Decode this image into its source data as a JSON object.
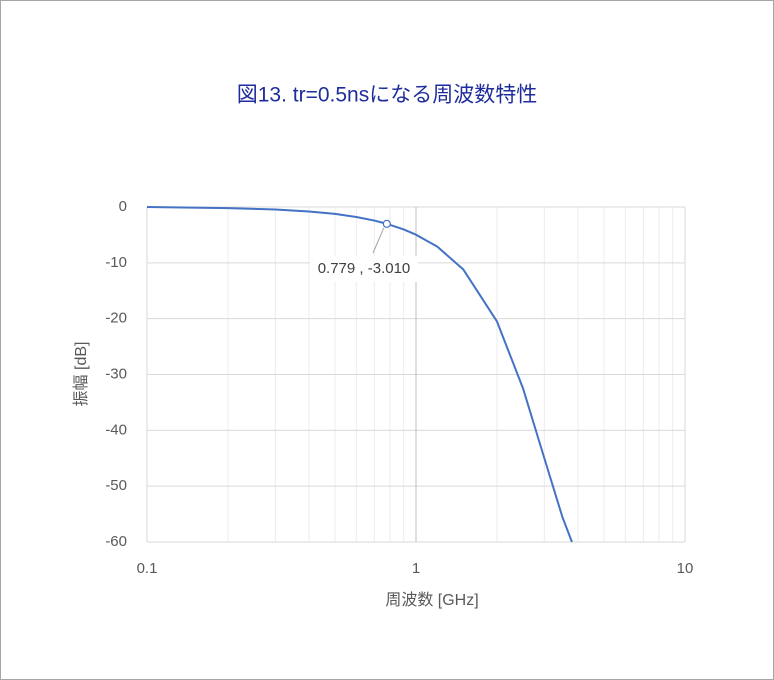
{
  "chart_data": {
    "type": "line",
    "title": "図13. tr=0.5nsになる周波数特性",
    "x_label": "周波数 [GHz]",
    "y_label": "振幅 [dB]",
    "x": [
      0.1,
      0.2,
      0.3,
      0.4,
      0.5,
      0.6,
      0.7,
      0.779,
      0.9,
      1,
      1.2,
      1.5,
      2,
      2.5,
      3,
      3.5,
      3.8
    ],
    "series": [
      {
        "name": "振幅",
        "color": "#4472c4",
        "values": [
          0,
          -0.2,
          -0.45,
          -0.8,
          -1.24,
          -1.79,
          -2.43,
          -3.01,
          -4.02,
          -4.96,
          -7.1,
          -11.2,
          -20.5,
          -32.5,
          -45,
          -55.5,
          -60
        ]
      }
    ],
    "xlim": [
      0.1,
      10
    ],
    "xticks": [
      0.1,
      1,
      10
    ],
    "xscale": "log",
    "xminorticks": [
      0.2,
      0.3,
      0.4,
      0.5,
      0.6,
      0.7,
      0.8,
      0.9,
      2,
      3,
      4,
      5,
      6,
      7,
      8,
      9
    ],
    "ylim": [
      -60,
      0
    ],
    "yticks": [
      0,
      -10,
      -20,
      -30,
      -40,
      -50,
      -60
    ],
    "grid": true,
    "annotation": {
      "x": 0.779,
      "y": -3.01,
      "label": "0.779 , -3.010"
    }
  }
}
